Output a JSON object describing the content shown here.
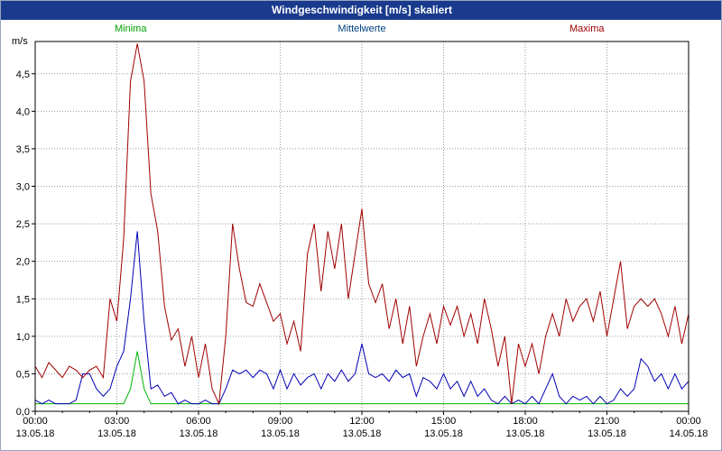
{
  "title_bar": {
    "title": "Windgeschwindigkeit [m/s] skaliert"
  },
  "legend": {
    "minima": "Minima",
    "mittelwerte": "Mittelwerte",
    "maxima": "Maxima"
  },
  "axis": {
    "unit_label": "m/s"
  },
  "colors": {
    "titlebar_bg": "#1a3b8d",
    "minima": "#00b400",
    "mittelwerte": "#0000b4",
    "maxima": "#a00000",
    "grid": "#9a9aa0",
    "plot_border": "#000000"
  },
  "chart_data": {
    "type": "line",
    "title": "Windgeschwindigkeit [m/s] skaliert",
    "x_range_hours": [
      0,
      24
    ],
    "y_range": [
      0,
      4.93
    ],
    "x_step_hours": 0.25,
    "grid": true,
    "legend_position": "top",
    "y_ticks": [
      {
        "value": 0.0,
        "label": "0,0"
      },
      {
        "value": 0.5,
        "label": "0,5"
      },
      {
        "value": 1.0,
        "label": "1,0"
      },
      {
        "value": 1.5,
        "label": "1,5"
      },
      {
        "value": 2.0,
        "label": "2,0"
      },
      {
        "value": 2.5,
        "label": "2,5"
      },
      {
        "value": 3.0,
        "label": "3,0"
      },
      {
        "value": 3.5,
        "label": "3,5"
      },
      {
        "value": 4.0,
        "label": "4,0"
      },
      {
        "value": 4.5,
        "label": "4,5"
      }
    ],
    "x_ticks": [
      {
        "hour": 0,
        "time": "00:00",
        "date": "13.05.18"
      },
      {
        "hour": 3,
        "time": "03:00",
        "date": "13.05.18"
      },
      {
        "hour": 6,
        "time": "06:00",
        "date": "13.05.18"
      },
      {
        "hour": 9,
        "time": "09:00",
        "date": "13.05.18"
      },
      {
        "hour": 12,
        "time": "12:00",
        "date": "13.05.18"
      },
      {
        "hour": 15,
        "time": "15:00",
        "date": "13.05.18"
      },
      {
        "hour": 18,
        "time": "18:00",
        "date": "13.05.18"
      },
      {
        "hour": 21,
        "time": "21:00",
        "date": "13.05.18"
      },
      {
        "hour": 24,
        "time": "00:00",
        "date": "14.05.18"
      }
    ],
    "series": [
      {
        "name": "Minima",
        "color": "#00b400",
        "values": [
          0.1,
          0.1,
          0.1,
          0.1,
          0.1,
          0.1,
          0.1,
          0.1,
          0.1,
          0.1,
          0.1,
          0.1,
          0.1,
          0.1,
          0.3,
          0.8,
          0.3,
          0.1,
          0.1,
          0.1,
          0.1,
          0.1,
          0.1,
          0.1,
          0.1,
          0.1,
          0.1,
          0.1,
          0.1,
          0.1,
          0.1,
          0.1,
          0.1,
          0.1,
          0.1,
          0.1,
          0.1,
          0.1,
          0.1,
          0.1,
          0.1,
          0.1,
          0.1,
          0.1,
          0.1,
          0.1,
          0.1,
          0.1,
          0.1,
          0.1,
          0.1,
          0.1,
          0.1,
          0.1,
          0.1,
          0.1,
          0.1,
          0.1,
          0.1,
          0.1,
          0.1,
          0.1,
          0.1,
          0.1,
          0.1,
          0.1,
          0.1,
          0.1,
          0.1,
          0.1,
          0.1,
          0.1,
          0.1,
          0.1,
          0.1,
          0.1,
          0.1,
          0.1,
          0.1,
          0.1,
          0.1,
          0.1,
          0.1,
          0.1,
          0.1,
          0.1,
          0.1,
          0.1,
          0.1,
          0.1,
          0.1,
          0.1,
          0.1,
          0.1,
          0.1,
          0.1,
          0.1
        ]
      },
      {
        "name": "Mittelwerte",
        "color": "#0000b4",
        "values": [
          0.15,
          0.1,
          0.15,
          0.1,
          0.1,
          0.1,
          0.15,
          0.5,
          0.5,
          0.3,
          0.2,
          0.3,
          0.6,
          0.8,
          1.5,
          2.4,
          1.2,
          0.3,
          0.35,
          0.2,
          0.25,
          0.1,
          0.15,
          0.1,
          0.1,
          0.15,
          0.1,
          0.1,
          0.3,
          0.55,
          0.5,
          0.55,
          0.45,
          0.55,
          0.5,
          0.3,
          0.55,
          0.3,
          0.5,
          0.35,
          0.45,
          0.5,
          0.3,
          0.5,
          0.4,
          0.55,
          0.4,
          0.5,
          0.9,
          0.5,
          0.45,
          0.5,
          0.4,
          0.55,
          0.45,
          0.5,
          0.2,
          0.45,
          0.4,
          0.3,
          0.5,
          0.3,
          0.4,
          0.2,
          0.4,
          0.2,
          0.3,
          0.15,
          0.1,
          0.2,
          0.1,
          0.15,
          0.1,
          0.2,
          0.1,
          0.3,
          0.5,
          0.2,
          0.1,
          0.2,
          0.15,
          0.2,
          0.1,
          0.2,
          0.1,
          0.15,
          0.3,
          0.2,
          0.3,
          0.7,
          0.6,
          0.4,
          0.5,
          0.3,
          0.5,
          0.3,
          0.4
        ]
      },
      {
        "name": "Maxima",
        "color": "#a00000",
        "values": [
          0.6,
          0.45,
          0.65,
          0.55,
          0.45,
          0.6,
          0.55,
          0.45,
          0.55,
          0.6,
          0.45,
          1.5,
          1.2,
          2.3,
          4.4,
          4.9,
          4.4,
          2.9,
          2.4,
          1.4,
          0.95,
          1.1,
          0.6,
          1.0,
          0.45,
          0.9,
          0.3,
          0.1,
          1.0,
          2.5,
          1.9,
          1.45,
          1.4,
          1.7,
          1.45,
          1.2,
          1.3,
          0.9,
          1.2,
          0.8,
          2.1,
          2.5,
          1.6,
          2.4,
          1.9,
          2.5,
          1.5,
          2.1,
          2.7,
          1.7,
          1.45,
          1.7,
          1.1,
          1.5,
          0.9,
          1.4,
          0.6,
          1.0,
          1.3,
          0.9,
          1.4,
          1.15,
          1.4,
          1.0,
          1.3,
          0.9,
          1.5,
          1.1,
          0.6,
          1.0,
          0.1,
          0.9,
          0.6,
          0.9,
          0.5,
          1.0,
          1.3,
          1.0,
          1.5,
          1.2,
          1.4,
          1.5,
          1.2,
          1.6,
          1.0,
          1.5,
          2.0,
          1.1,
          1.4,
          1.5,
          1.4,
          1.5,
          1.3,
          1.0,
          1.4,
          0.9,
          1.3
        ]
      }
    ]
  }
}
